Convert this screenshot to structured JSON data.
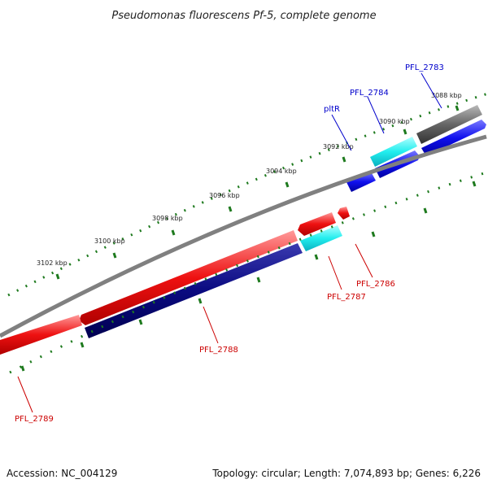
{
  "title": "Pseudomonas fluorescens Pf-5, complete genome",
  "footer": {
    "accession": "Accession: NC_004129",
    "summary": "Topology: circular; Length: 7,074,893 bp; Genes: 6,226"
  },
  "ticks": [
    {
      "label": "3088 kbp"
    },
    {
      "label": "3090 kbp"
    },
    {
      "label": "3092 kbp"
    },
    {
      "label": "3094 kbp"
    },
    {
      "label": "3096 kbp"
    },
    {
      "label": "3098 kbp"
    },
    {
      "label": "3100 kbp"
    },
    {
      "label": "3102 kbp"
    }
  ],
  "genes": [
    {
      "id": "PFL_2783",
      "label": "PFL_2783",
      "color": "#0000cc"
    },
    {
      "id": "PFL_2784",
      "label": "PFL_2784",
      "color": "#0000cc"
    },
    {
      "id": "pltR",
      "label": "pltR",
      "color": "#0000cc"
    },
    {
      "id": "PFL_2786",
      "label": "PFL_2786",
      "color": "#cc0000"
    },
    {
      "id": "PFL_2787",
      "label": "PFL_2787",
      "color": "#cc0000"
    },
    {
      "id": "PFL_2788",
      "label": "PFL_2788",
      "color": "#cc0000"
    },
    {
      "id": "PFL_2789",
      "label": "PFL_2789",
      "color": "#cc0000"
    }
  ],
  "colors": {
    "backbone": "#808080",
    "tick": "#1e7a1e",
    "forward_red": "#ee1111",
    "reverse_navy": "#0a0a80",
    "cyan": "#22eeee",
    "blue": "#1010ee",
    "gray": "#666666"
  }
}
